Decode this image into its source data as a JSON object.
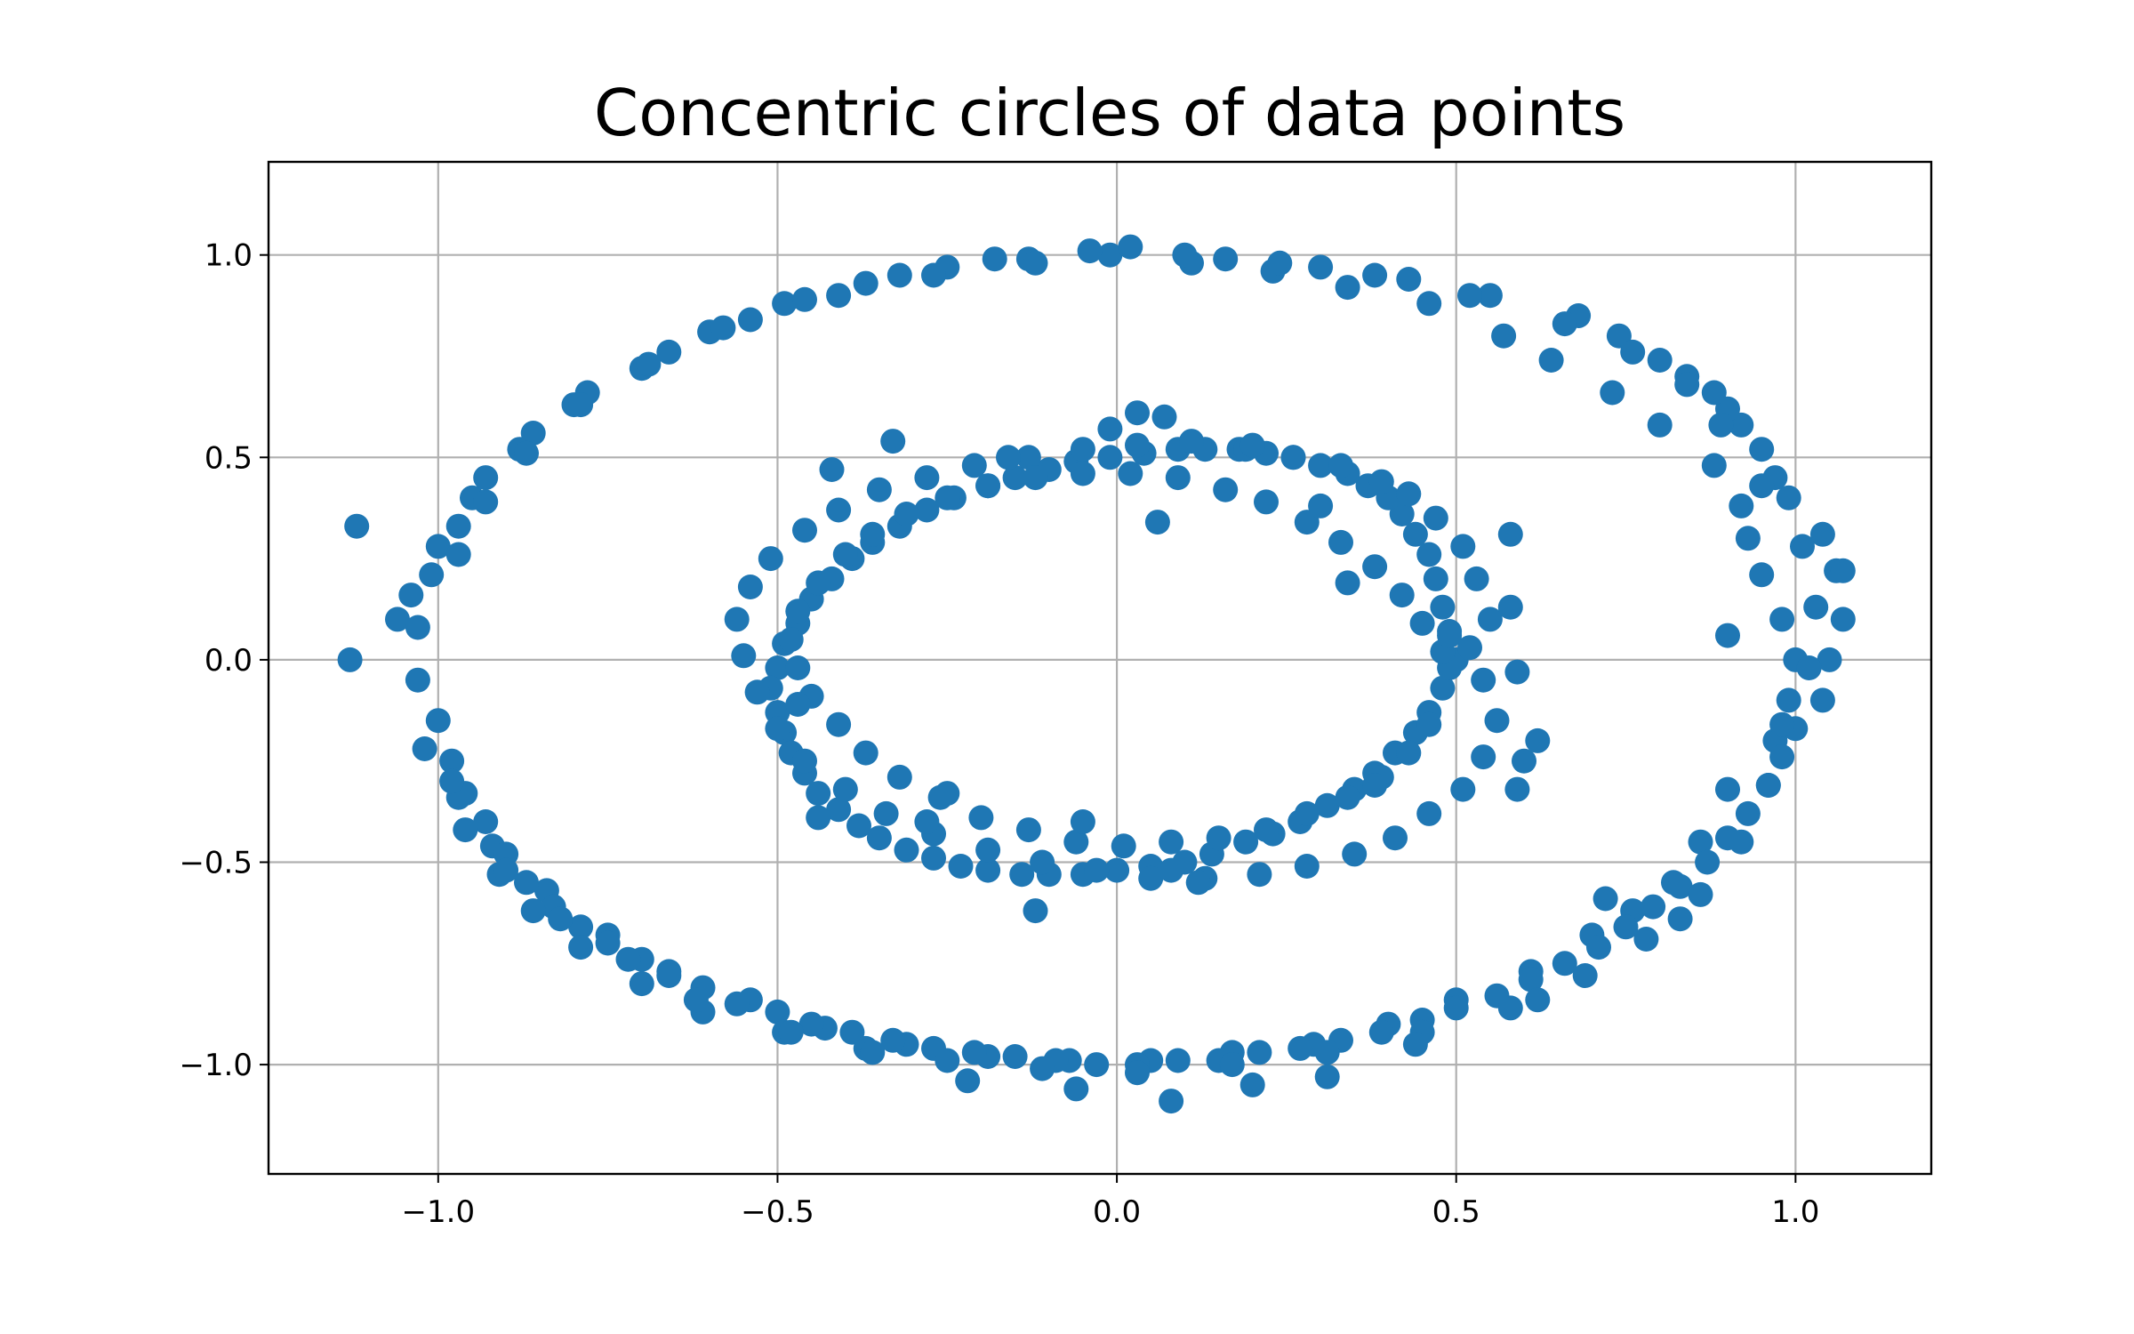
{
  "chart_data": {
    "type": "scatter",
    "title": "Concentric circles of data points",
    "xlabel": "",
    "ylabel": "",
    "xlim": [
      -1.25,
      1.2
    ],
    "ylim": [
      -1.27,
      1.23
    ],
    "grid": true,
    "legend": "none",
    "xticks": [
      -1.0,
      -0.5,
      0.0,
      0.5,
      1.0
    ],
    "yticks": [
      -1.0,
      -0.5,
      0.0,
      0.5,
      1.0
    ],
    "xtick_labels": [
      "−1.0",
      "−0.5",
      "0.0",
      "0.5",
      "1.0"
    ],
    "ytick_labels": [
      "−1.0",
      "−0.5",
      "0.0",
      "0.5",
      "1.0"
    ],
    "colors": {
      "points": "#1f77b4",
      "grid": "#b0b0b0",
      "frame": "#000000"
    },
    "series": [
      {
        "x": [
          1.0,
          0.98,
          0.99,
          0.95,
          0.97,
          0.93,
          0.9,
          0.92,
          0.86,
          0.88,
          0.82,
          0.8,
          0.76,
          0.73,
          0.7,
          0.64,
          0.61,
          0.57,
          0.5,
          0.46,
          0.4,
          0.34,
          0.29,
          0.23,
          0.17,
          0.11,
          0.05,
          -0.01,
          -0.07,
          -0.13,
          -0.19,
          -0.25,
          -0.31,
          -0.37,
          -0.43,
          -0.49,
          -0.54,
          -0.6,
          -0.66,
          -0.7,
          -0.75,
          -0.8,
          -0.84,
          -0.88,
          -0.92,
          -0.95,
          -0.97,
          -1.0,
          -1.02,
          -1.04,
          -1.06,
          -1.13,
          -1.03,
          -1.0,
          -0.98,
          -0.96,
          -0.93,
          -0.9,
          -0.87,
          -0.83,
          -0.79,
          -0.75,
          -0.7,
          -0.66,
          -0.61,
          -0.56,
          -0.5,
          -0.45,
          -0.39,
          -0.33,
          -0.27,
          -0.21,
          -0.15,
          -0.09,
          -0.03,
          0.03,
          0.09,
          0.15,
          0.21,
          0.27,
          0.33,
          0.39,
          0.45,
          0.5,
          0.56,
          0.61,
          0.66,
          0.71,
          0.75,
          0.79,
          0.83,
          0.87,
          0.9,
          0.93,
          0.96,
          0.98,
          1.0,
          1.04,
          1.05,
          1.07,
          1.06,
          1.04,
          0.99,
          0.97,
          0.95,
          0.92,
          0.9,
          0.88,
          0.84,
          0.8,
          0.74,
          0.68,
          0.55,
          0.43,
          0.3,
          0.16,
          0.02,
          -0.12,
          -0.27,
          -0.41,
          -0.54,
          -0.66,
          -0.78,
          -0.86,
          -0.93,
          -0.97,
          -1.01,
          -1.03,
          -1.12,
          -0.98,
          -0.96,
          -0.91,
          -0.86,
          -0.79,
          -0.7,
          -0.61,
          -0.49,
          -0.37,
          -0.25,
          -0.11,
          0.03,
          0.17,
          0.31,
          0.45,
          0.58,
          0.69,
          0.78,
          0.86,
          0.92,
          0.96,
          0.98,
          1.02,
          1.03,
          1.01,
          0.95,
          0.89,
          0.84,
          0.76,
          0.66,
          0.52,
          0.38,
          0.24,
          0.1,
          -0.04,
          -0.18,
          -0.32,
          -0.46,
          -0.58,
          -0.69,
          -0.79,
          -0.87,
          -0.93,
          -0.97,
          1.07,
          0.9,
          0.83,
          0.72,
          0.62,
          0.44,
          0.31,
          0.2,
          0.08,
          -0.06,
          -0.22,
          -0.36,
          -0.48,
          -0.62,
          -0.72,
          -0.82,
          -0.9,
          0.5,
          0.49,
          0.48,
          0.47,
          0.46,
          0.44,
          0.42,
          0.4,
          0.37,
          0.34,
          0.3,
          0.26,
          0.22,
          0.18,
          0.13,
          0.09,
          0.04,
          -0.01,
          -0.06,
          -0.1,
          -0.15,
          -0.19,
          -0.24,
          -0.28,
          -0.32,
          -0.36,
          -0.39,
          -0.42,
          -0.45,
          -0.47,
          -0.49,
          -0.5,
          -0.51,
          -0.5,
          -0.49,
          -0.48,
          -0.46,
          -0.44,
          -0.41,
          -0.38,
          -0.35,
          -0.31,
          -0.27,
          -0.23,
          -0.19,
          -0.14,
          -0.1,
          -0.05,
          0.0,
          0.05,
          0.1,
          0.14,
          0.19,
          0.23,
          0.27,
          0.31,
          0.35,
          0.38,
          0.41,
          0.44,
          0.46,
          0.48,
          0.49,
          0.52,
          0.54,
          0.55,
          0.53,
          0.51,
          0.47,
          0.43,
          0.39,
          0.33,
          0.26,
          0.19,
          0.11,
          0.03,
          -0.05,
          -0.13,
          -0.21,
          -0.28,
          -0.35,
          -0.41,
          -0.46,
          -0.51,
          -0.54,
          -0.56,
          -0.55,
          -0.53,
          -0.5,
          -0.46,
          -0.4,
          -0.34,
          -0.27,
          -0.19,
          -0.11,
          -0.03,
          0.05,
          0.13,
          0.21,
          0.28,
          0.35,
          0.41,
          0.46,
          0.51,
          0.54,
          0.56,
          0.48,
          0.45,
          0.42,
          0.38,
          0.33,
          0.28,
          0.22,
          0.16,
          0.09,
          0.02,
          -0.05,
          -0.12,
          -0.19,
          -0.25,
          -0.31,
          -0.36,
          -0.4,
          -0.44,
          -0.47,
          -0.48,
          -0.47,
          -0.45,
          -0.41,
          -0.37,
          -0.32,
          -0.26,
          -0.2,
          -0.13,
          -0.06,
          0.01,
          0.08,
          0.15,
          0.22,
          0.28,
          0.34,
          0.39,
          0.43,
          0.46,
          0.58,
          0.59,
          0.62,
          0.6,
          0.59,
          0.58,
          0.03,
          0.07,
          0.2,
          -0.05,
          0.34,
          -0.42,
          -0.44,
          -0.33,
          0.08,
          -0.01,
          -0.25,
          -0.16,
          -0.12,
          0.38,
          0.3,
          -0.47,
          0.49,
          0.06,
          0.12,
          -0.28
        ],
        "y": [
          0.0,
          0.1,
          -0.1,
          0.21,
          -0.2,
          0.3,
          -0.32,
          0.38,
          -0.45,
          0.48,
          -0.55,
          0.58,
          -0.62,
          0.66,
          -0.68,
          0.74,
          -0.77,
          0.8,
          -0.84,
          0.88,
          -0.9,
          0.92,
          -0.95,
          0.96,
          -0.97,
          0.98,
          -0.99,
          1.0,
          -0.99,
          0.99,
          -0.98,
          0.97,
          -0.95,
          0.93,
          -0.91,
          0.88,
          -0.84,
          0.81,
          -0.77,
          0.72,
          -0.68,
          0.63,
          -0.57,
          0.52,
          -0.46,
          0.4,
          -0.34,
          0.28,
          -0.22,
          0.16,
          0.1,
          0.0,
          -0.05,
          -0.15,
          -0.25,
          -0.33,
          -0.4,
          -0.48,
          -0.55,
          -0.61,
          -0.66,
          -0.7,
          -0.74,
          -0.78,
          -0.81,
          -0.85,
          -0.87,
          -0.9,
          -0.92,
          -0.94,
          -0.96,
          -0.97,
          -0.98,
          -0.99,
          -1.0,
          -1.0,
          -0.99,
          -0.99,
          -0.97,
          -0.96,
          -0.94,
          -0.92,
          -0.89,
          -0.86,
          -0.83,
          -0.79,
          -0.75,
          -0.71,
          -0.66,
          -0.61,
          -0.56,
          -0.5,
          -0.44,
          -0.38,
          -0.31,
          -0.24,
          -0.17,
          -0.1,
          0.0,
          0.1,
          0.22,
          0.31,
          0.4,
          0.45,
          0.52,
          0.58,
          0.62,
          0.66,
          0.7,
          0.74,
          0.8,
          0.85,
          0.9,
          0.94,
          0.97,
          0.99,
          1.02,
          0.98,
          0.95,
          0.9,
          0.84,
          0.76,
          0.66,
          0.56,
          0.45,
          0.33,
          0.21,
          0.08,
          0.33,
          -0.3,
          -0.42,
          -0.53,
          -0.62,
          -0.71,
          -0.8,
          -0.87,
          -0.92,
          -0.96,
          -0.99,
          -1.01,
          -1.02,
          -1.0,
          -0.97,
          -0.92,
          -0.86,
          -0.78,
          -0.69,
          -0.58,
          -0.45,
          -0.31,
          -0.16,
          -0.02,
          0.13,
          0.28,
          0.43,
          0.58,
          0.68,
          0.76,
          0.83,
          0.9,
          0.95,
          0.98,
          1.0,
          1.01,
          0.99,
          0.95,
          0.89,
          0.82,
          0.73,
          0.63,
          0.51,
          0.39,
          0.26,
          0.22,
          0.06,
          -0.64,
          -0.59,
          -0.84,
          -0.95,
          -1.03,
          -1.05,
          -1.09,
          -1.06,
          -1.04,
          -0.97,
          -0.92,
          -0.84,
          -0.74,
          -0.64,
          -0.52,
          0.0,
          0.07,
          0.13,
          0.2,
          0.26,
          0.31,
          0.36,
          0.4,
          0.43,
          0.46,
          0.48,
          0.5,
          0.51,
          0.52,
          0.52,
          0.52,
          0.51,
          0.5,
          0.49,
          0.47,
          0.45,
          0.43,
          0.4,
          0.37,
          0.33,
          0.29,
          0.25,
          0.2,
          0.15,
          0.09,
          0.04,
          -0.02,
          -0.07,
          -0.13,
          -0.18,
          -0.23,
          -0.28,
          -0.33,
          -0.37,
          -0.41,
          -0.44,
          -0.47,
          -0.49,
          -0.51,
          -0.52,
          -0.53,
          -0.53,
          -0.53,
          -0.52,
          -0.51,
          -0.5,
          -0.48,
          -0.45,
          -0.43,
          -0.4,
          -0.36,
          -0.32,
          -0.28,
          -0.23,
          -0.18,
          -0.13,
          -0.07,
          -0.02,
          0.03,
          -0.05,
          0.1,
          0.2,
          0.28,
          0.35,
          0.41,
          0.44,
          0.48,
          0.5,
          0.52,
          0.54,
          0.53,
          0.52,
          0.5,
          0.48,
          0.45,
          0.42,
          0.37,
          0.32,
          0.25,
          0.18,
          0.1,
          0.01,
          -0.08,
          -0.17,
          -0.25,
          -0.32,
          -0.38,
          -0.43,
          -0.47,
          -0.5,
          -0.52,
          -0.54,
          -0.54,
          -0.53,
          -0.51,
          -0.48,
          -0.44,
          -0.38,
          -0.32,
          -0.24,
          -0.15,
          0.02,
          0.09,
          0.16,
          0.23,
          0.29,
          0.34,
          0.39,
          0.42,
          0.45,
          0.46,
          0.46,
          0.45,
          0.43,
          0.4,
          0.36,
          0.31,
          0.26,
          0.19,
          0.12,
          0.05,
          -0.02,
          -0.09,
          -0.16,
          -0.23,
          -0.29,
          -0.34,
          -0.39,
          -0.42,
          -0.45,
          -0.46,
          -0.45,
          -0.44,
          -0.42,
          -0.38,
          -0.34,
          -0.29,
          -0.23,
          -0.16,
          0.31,
          -0.03,
          -0.2,
          -0.25,
          -0.32,
          0.13,
          0.61,
          0.6,
          0.53,
          -0.4,
          0.19,
          0.47,
          -0.39,
          0.54,
          -0.52,
          0.57,
          -0.33,
          0.5,
          -0.62,
          -0.31,
          0.38,
          -0.11,
          0.06,
          0.34,
          -0.55,
          -0.4
        ]
      }
    ]
  }
}
